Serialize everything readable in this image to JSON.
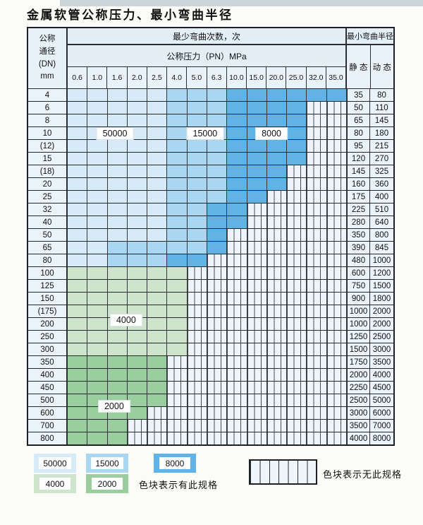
{
  "title": "金属软管公称压力、最小弯曲半径",
  "header": {
    "dn": "公称\n通径\n(DN)\nmm",
    "bend_cycles": "最少弯曲次数，次",
    "pn": "公称压力（PN）MPa",
    "bend_radius": "最小弯曲半径",
    "static": "静 态",
    "dynamic": "动 态",
    "pressures": [
      "0.6",
      "1.0",
      "1.6",
      "2.0",
      "2.5",
      "4.0",
      "5.0",
      "6.3",
      "10.0",
      "15.0",
      "20.0",
      "25.0",
      "32.0",
      "35.0"
    ]
  },
  "colors": {
    "blue_light": "#d6eaf8",
    "blue_mid": "#a9d6f0",
    "blue_dark": "#60b3e5",
    "green_light": "#cfe4cd",
    "green_mid": "#9ace9f"
  },
  "rows": [
    {
      "dn": "4",
      "static": "35",
      "dynamic": "80",
      "segments": [
        [
          "blue_light",
          5
        ],
        [
          "blue_mid",
          3
        ],
        [
          "blue_dark",
          6
        ]
      ]
    },
    {
      "dn": "6",
      "static": "50",
      "dynamic": "110",
      "segments": [
        [
          "blue_light",
          5
        ],
        [
          "blue_mid",
          3
        ],
        [
          "blue_dark",
          4
        ]
      ]
    },
    {
      "dn": "8",
      "static": "65",
      "dynamic": "145",
      "segments": [
        [
          "blue_light",
          5
        ],
        [
          "blue_mid",
          3
        ],
        [
          "blue_dark",
          4
        ]
      ]
    },
    {
      "dn": "10",
      "static": "80",
      "dynamic": "180",
      "segments": [
        [
          "blue_light",
          5
        ],
        [
          "blue_mid",
          3
        ],
        [
          "blue_dark",
          4
        ]
      ]
    },
    {
      "dn": "(12)",
      "static": "95",
      "dynamic": "215",
      "segments": [
        [
          "blue_light",
          5
        ],
        [
          "blue_mid",
          3
        ],
        [
          "blue_dark",
          4
        ]
      ]
    },
    {
      "dn": "15",
      "static": "120",
      "dynamic": "270",
      "segments": [
        [
          "blue_light",
          5
        ],
        [
          "blue_mid",
          3
        ],
        [
          "blue_dark",
          4
        ]
      ]
    },
    {
      "dn": "(18)",
      "static": "145",
      "dynamic": "325",
      "segments": [
        [
          "blue_light",
          5
        ],
        [
          "blue_mid",
          3
        ],
        [
          "blue_dark",
          3
        ]
      ]
    },
    {
      "dn": "20",
      "static": "160",
      "dynamic": "360",
      "segments": [
        [
          "blue_light",
          5
        ],
        [
          "blue_mid",
          3
        ],
        [
          "blue_dark",
          3
        ]
      ]
    },
    {
      "dn": "25",
      "static": "175",
      "dynamic": "400",
      "segments": [
        [
          "blue_light",
          5
        ],
        [
          "blue_mid",
          3
        ],
        [
          "blue_dark",
          2
        ]
      ]
    },
    {
      "dn": "32",
      "static": "225",
      "dynamic": "510",
      "segments": [
        [
          "blue_light",
          5
        ],
        [
          "blue_mid",
          2
        ],
        [
          "blue_dark",
          2
        ]
      ]
    },
    {
      "dn": "40",
      "static": "280",
      "dynamic": "640",
      "segments": [
        [
          "blue_light",
          5
        ],
        [
          "blue_mid",
          2
        ],
        [
          "blue_dark",
          2
        ]
      ]
    },
    {
      "dn": "50",
      "static": "350",
      "dynamic": "800",
      "segments": [
        [
          "blue_light",
          5
        ],
        [
          "blue_mid",
          2
        ],
        [
          "blue_dark",
          1
        ]
      ]
    },
    {
      "dn": "65",
      "static": "390",
      "dynamic": "845",
      "segments": [
        [
          "blue_light",
          2
        ],
        [
          "blue_mid",
          5
        ],
        [
          "blue_dark",
          1
        ]
      ]
    },
    {
      "dn": "80",
      "static": "480",
      "dynamic": "1000",
      "segments": [
        [
          "blue_light",
          2
        ],
        [
          "blue_mid",
          3
        ],
        [
          "blue_dark",
          2
        ]
      ]
    },
    {
      "dn": "100",
      "static": "600",
      "dynamic": "1200",
      "segments": [
        [
          "green_light",
          6
        ]
      ]
    },
    {
      "dn": "125",
      "static": "750",
      "dynamic": "1500",
      "segments": [
        [
          "green_light",
          6
        ]
      ]
    },
    {
      "dn": "150",
      "static": "900",
      "dynamic": "1800",
      "segments": [
        [
          "green_light",
          6
        ]
      ]
    },
    {
      "dn": "(175)",
      "static": "1000",
      "dynamic": "2000",
      "segments": [
        [
          "green_light",
          6
        ]
      ]
    },
    {
      "dn": "200",
      "static": "1000",
      "dynamic": "2000",
      "segments": [
        [
          "green_light",
          6
        ]
      ]
    },
    {
      "dn": "250",
      "static": "1250",
      "dynamic": "2500",
      "segments": [
        [
          "green_light",
          6
        ]
      ]
    },
    {
      "dn": "300",
      "static": "1500",
      "dynamic": "3000",
      "segments": [
        [
          "green_light",
          6
        ]
      ]
    },
    {
      "dn": "350",
      "static": "1750",
      "dynamic": "3500",
      "segments": [
        [
          "green_mid",
          5
        ]
      ]
    },
    {
      "dn": "400",
      "static": "2000",
      "dynamic": "4000",
      "segments": [
        [
          "green_mid",
          5
        ]
      ]
    },
    {
      "dn": "450",
      "static": "2250",
      "dynamic": "4500",
      "segments": [
        [
          "green_mid",
          5
        ]
      ]
    },
    {
      "dn": "500",
      "static": "2500",
      "dynamic": "5000",
      "segments": [
        [
          "green_mid",
          5
        ]
      ]
    },
    {
      "dn": "600",
      "static": "3000",
      "dynamic": "6000",
      "segments": [
        [
          "green_mid",
          4
        ]
      ]
    },
    {
      "dn": "700",
      "static": "3500",
      "dynamic": "7000",
      "segments": [
        [
          "green_mid",
          3
        ]
      ]
    },
    {
      "dn": "800",
      "static": "4000",
      "dynamic": "8000",
      "segments": [
        [
          "green_mid",
          3
        ]
      ]
    }
  ],
  "chart_labels": [
    {
      "text": "50000",
      "col": 2.37,
      "row": 3.53
    },
    {
      "text": "15000",
      "col": 6.89,
      "row": 3.53
    },
    {
      "text": "8000",
      "col": 10.22,
      "row": 3.53
    },
    {
      "text": "4000",
      "col": 2.93,
      "row": 18.1
    },
    {
      "text": "2000",
      "col": 2.33,
      "row": 24.85
    }
  ],
  "legend": {
    "swatches": [
      {
        "label": "50000",
        "color_key": "blue_light"
      },
      {
        "label": "15000",
        "color_key": "blue_mid"
      },
      {
        "label": "8000",
        "color_key": "blue_dark"
      },
      {
        "label": "4000",
        "color_key": "green_light"
      },
      {
        "label": "2000",
        "color_key": "green_mid"
      }
    ],
    "has_spec_text": "色块表示有此规格",
    "no_spec_text": "色块表示无此规格"
  }
}
